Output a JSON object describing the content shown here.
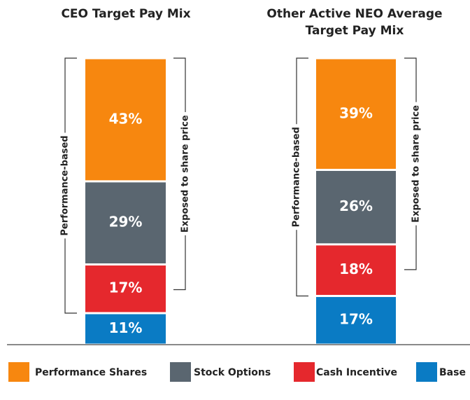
{
  "legend": [
    {
      "name": "Performance Shares",
      "color": "#f7870f"
    },
    {
      "name": "Stock Options",
      "color": "#5a6670"
    },
    {
      "name": "Cash Incentive",
      "color": "#e5282d"
    },
    {
      "name": "Base",
      "color": "#0a7bc4"
    }
  ],
  "chart_data": [
    {
      "type": "stacked_bar",
      "title": "CEO Target Pay Mix",
      "values": [
        43,
        29,
        17,
        11
      ],
      "value_labels": [
        "43%",
        "29%",
        "17%",
        "11%"
      ],
      "left_bracket": "Performance-based",
      "right_bracket": "Exposed to share price"
    },
    {
      "type": "stacked_bar",
      "title": "Other Active NEO Average Target Pay Mix",
      "values": [
        39,
        26,
        18,
        17
      ],
      "value_labels": [
        "39%",
        "26%",
        "18%",
        "17%"
      ],
      "left_bracket": "Performance-based",
      "right_bracket": "Exposed to share price"
    }
  ]
}
